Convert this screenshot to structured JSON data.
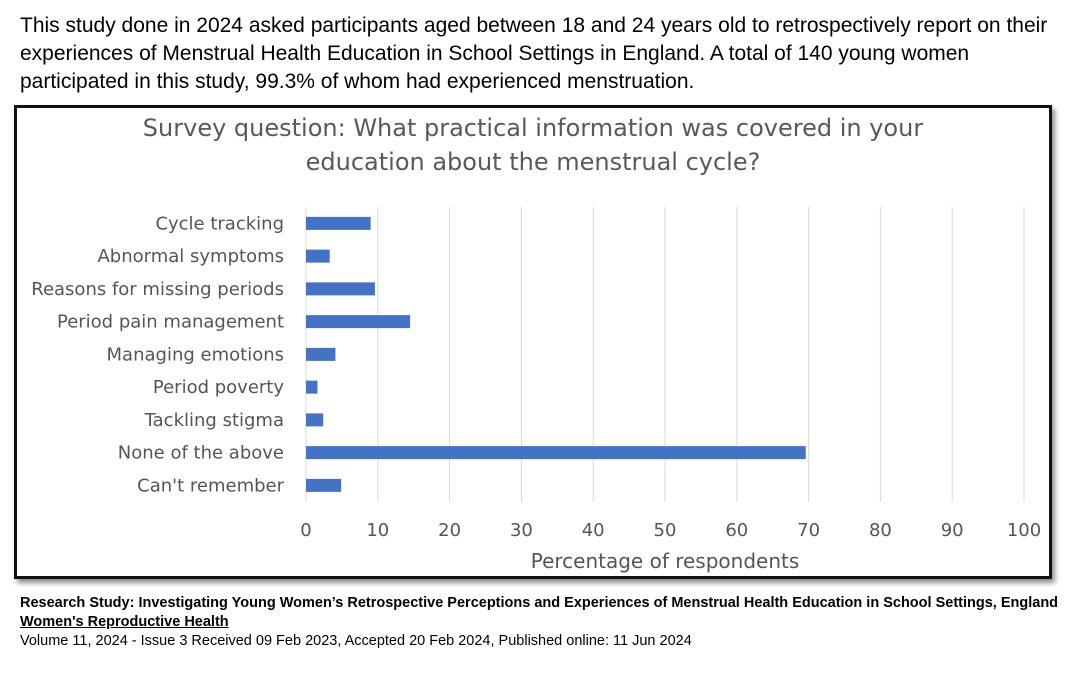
{
  "intro_text": "This study done in 2024 asked participants aged between 18 and 24 years old to retrospectively report on their experiences of Menstrual Health Education in School Settings in England. A total of 140 young women participated in this study, 99.3% of whom had experienced menstruation.",
  "chart_data": {
    "type": "bar",
    "orientation": "horizontal",
    "title": [
      "Survey question: What practical information was covered in your",
      "education about the menstrual cycle?"
    ],
    "xlabel": "Percentage of respondents",
    "ylabel": "",
    "categories": [
      "Cycle tracking",
      "Abnormal symptoms",
      "Reasons for missing periods",
      "Period pain management",
      "Managing emotions",
      "Period poverty",
      "Tackling stigma",
      "None of the above",
      "Can't remember"
    ],
    "values": [
      9,
      3.3,
      9.6,
      14.5,
      4.1,
      1.6,
      2.4,
      69.6,
      4.9
    ],
    "xlim": [
      0,
      100
    ],
    "xticks": [
      "0",
      "10",
      "20",
      "30",
      "40",
      "50",
      "60",
      "70",
      "80",
      "90",
      "100"
    ],
    "grid": "vertical",
    "bar_color": "#4472c4"
  },
  "footer": {
    "study_title": "Research Study: Investigating Young Women’s Retrospective Perceptions and Experiences of Menstrual Health Education in School Settings, England",
    "journal": "Women's Reproductive Health",
    "volume": "Volume 11, 2024 - Issue 3 Received 09 Feb 2023, Accepted 20 Feb 2024, Published online: 11 Jun 2024"
  }
}
